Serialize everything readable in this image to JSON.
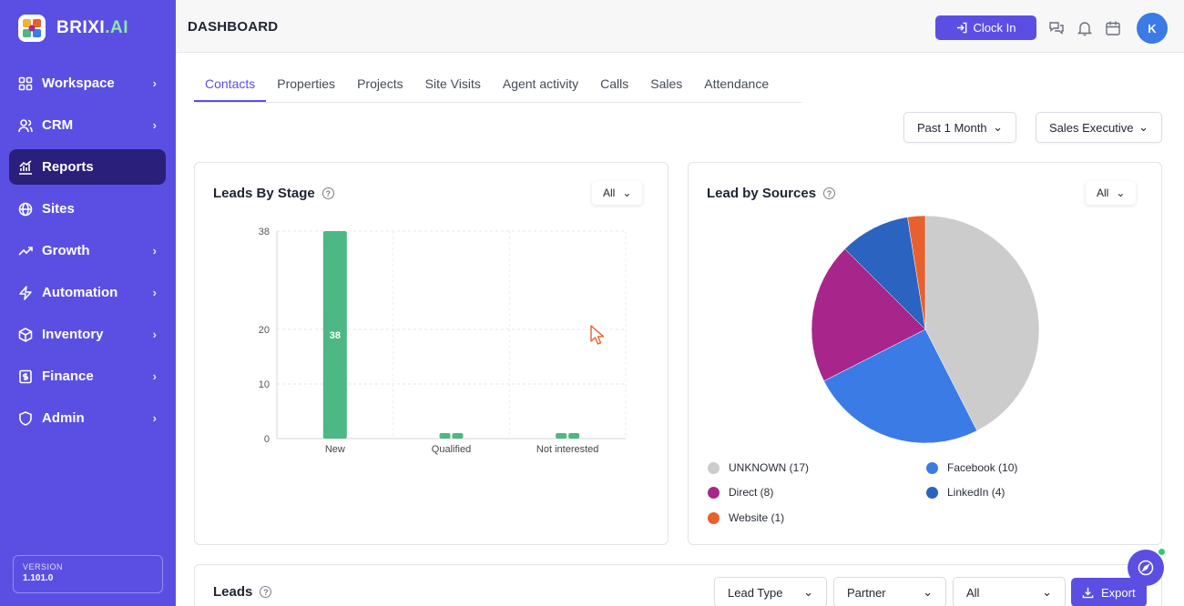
{
  "brand": {
    "name": "BRIXI",
    "suffix": ".AI"
  },
  "sidebar": {
    "items": [
      {
        "label": "Workspace",
        "icon": "grid-icon",
        "has_chevron": true
      },
      {
        "label": "CRM",
        "icon": "users-icon",
        "has_chevron": true
      },
      {
        "label": "Reports",
        "icon": "chart-icon",
        "has_chevron": false,
        "active": true
      },
      {
        "label": "Sites",
        "icon": "globe-icon",
        "has_chevron": false
      },
      {
        "label": "Growth",
        "icon": "trend-icon",
        "has_chevron": true
      },
      {
        "label": "Automation",
        "icon": "bolt-icon",
        "has_chevron": true
      },
      {
        "label": "Inventory",
        "icon": "box-icon",
        "has_chevron": true
      },
      {
        "label": "Finance",
        "icon": "dollar-icon",
        "has_chevron": true
      },
      {
        "label": "Admin",
        "icon": "shield-icon",
        "has_chevron": true
      }
    ],
    "version_label": "VERSION",
    "version_value": "1.101.0"
  },
  "header": {
    "title": "DASHBOARD",
    "clock_in": "Clock In",
    "avatar_initial": "K"
  },
  "tabs": [
    "Contacts",
    "Properties",
    "Projects",
    "Site Visits",
    "Agent activity",
    "Calls",
    "Sales",
    "Attendance"
  ],
  "active_tab": "Contacts",
  "filters": {
    "period": "Past 1 Month",
    "role": "Sales Executive"
  },
  "leads_by_stage": {
    "title": "Leads By Stage",
    "filter": "All"
  },
  "lead_by_sources": {
    "title": "Lead by Sources",
    "filter": "All"
  },
  "leads_section": {
    "title": "Leads",
    "lead_type": "Lead Type",
    "partner": "Partner",
    "all": "All",
    "export": "Export"
  },
  "chart_data": [
    {
      "type": "bar",
      "title": "Leads By Stage",
      "categories": [
        "New",
        "Qualified",
        "Not interested"
      ],
      "values": [
        38,
        0,
        0
      ],
      "data_labels": [
        "38",
        "",
        ""
      ],
      "yticks": [
        0,
        10,
        20,
        38
      ],
      "ylim": [
        0,
        38
      ],
      "color": "#4db883",
      "grid": true
    },
    {
      "type": "pie",
      "title": "Lead by Sources",
      "labels": [
        "UNKNOWN",
        "Facebook",
        "Direct",
        "LinkedIn",
        "Website"
      ],
      "legend": [
        "UNKNOWN (17)",
        "Facebook (10)",
        "Direct (8)",
        "LinkedIn (4)",
        "Website (1)"
      ],
      "values": [
        17,
        10,
        8,
        4,
        1
      ],
      "colors": [
        "#cccccc",
        "#3a7be6",
        "#a8268c",
        "#2a63c0",
        "#e8602e"
      ],
      "legend_position": "bottom"
    }
  ]
}
